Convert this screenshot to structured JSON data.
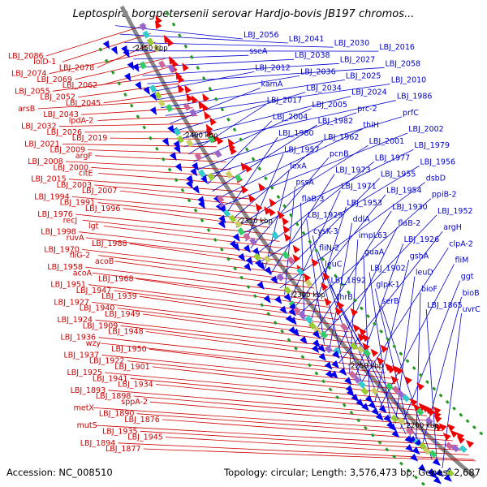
{
  "title": "Leptospira borgpetersenii serovar Hardjo-bovis JB197 chromos...",
  "accession": "Accession: NC_008510",
  "summary": "Topology: circular; Length: 3,576,473 bp; Genes: 2,687",
  "colors": {
    "reverse_strand": "#ee0000",
    "forward_strand": "#0000ee",
    "reverse_line": "#cc0000",
    "forward_line": "#0000cc",
    "backbone": "#888888",
    "tick": "#229922"
  },
  "ticks": [
    {
      "label": "2450 kbp"
    },
    {
      "label": "2400 kbp"
    },
    {
      "label": "2350 kbp"
    },
    {
      "label": "2300 kbp"
    },
    {
      "label": "2250 kbp"
    },
    {
      "label": "2200 kbp"
    }
  ],
  "labels_left": [
    "LBJ_2086",
    "lolD-1",
    "LBJ_2078",
    "LBJ_2074",
    "LBJ_2069",
    "LBJ_2062",
    "LBJ_2055",
    "LBJ_2052",
    "LBJ_2045",
    "arsB",
    "LBJ_2043",
    "lpdA-2",
    "LBJ_2032",
    "LBJ_2026",
    "LBJ_2019",
    "LBJ_2021",
    "LBJ_2009",
    "argF",
    "LBJ_2008",
    "LBJ_2000",
    "citE",
    "LBJ_2015",
    "LBJ_2003",
    "LBJ_2007",
    "LBJ_1994",
    "LBJ_1991",
    "LBJ_1996",
    "LBJ_1976",
    "recJ",
    "lgt",
    "LBJ_1998",
    "ruvA",
    "LBJ_1988",
    "LBJ_1970",
    "fliG-2",
    "acoB",
    "LBJ_1958",
    "acoA",
    "LBJ_1968",
    "LBJ_1951",
    "LBJ_1947",
    "LBJ_1939",
    "LBJ_1927",
    "LBJ_1940",
    "LBJ_1949",
    "LBJ_1924",
    "LBJ_1909",
    "LBJ_1948",
    "LBJ_1936",
    "wzy",
    "LBJ_1950",
    "LBJ_1937",
    "LBJ_1922",
    "LBJ_1901",
    "LBJ_1925",
    "LBJ_1941",
    "LBJ_1934",
    "LBJ_1893",
    "LBJ_1898",
    "sppA-2",
    "metX",
    "LBJ_1890",
    "LBJ_1876",
    "mutS",
    "LBJ_1935",
    "LBJ_1945",
    "LBJ_1894",
    "LBJ_1877"
  ],
  "labels_right": [
    "LBJ_2056",
    "LBJ_2041",
    "LBJ_2030",
    "LBJ_2016",
    "sseA",
    "LBJ_2038",
    "LBJ_2027",
    "LBJ_2058",
    "LBJ_2012",
    "LBJ_2036",
    "LBJ_2025",
    "LBJ_2010",
    "kamA",
    "LBJ_2034",
    "LBJ_2024",
    "LBJ_1986",
    "LBJ_2017",
    "LBJ_2005",
    "prc-2",
    "prfC",
    "LBJ_2004",
    "LBJ_1982",
    "thiH",
    "LBJ_2002",
    "LBJ_1980",
    "LBJ_1962",
    "LBJ_2001",
    "LBJ_1979",
    "LBJ_1957",
    "pcnB",
    "LBJ_1977",
    "LBJ_1956",
    "lexA",
    "LBJ_1973",
    "LBJ_1955",
    "dsbD",
    "pssA",
    "LBJ_1971",
    "LBJ_1954",
    "ppiB-2",
    "flaB-3",
    "LBJ_1953",
    "LBJ_1930",
    "LBJ_1952",
    "LBJ_1929",
    "ddlA",
    "flaB-2",
    "argH",
    "cysK-3",
    "impL63",
    "LBJ_1926",
    "clpA-2",
    "fliN-2",
    "guaA",
    "gshA",
    "fliM",
    "leuC",
    "LBJ_1902",
    "leuD",
    "ggt",
    "LBJ_1892",
    "glpK-1",
    "bioF",
    "bioB",
    "thrB",
    "serB",
    "LBJ_1865",
    "uvrC"
  ]
}
